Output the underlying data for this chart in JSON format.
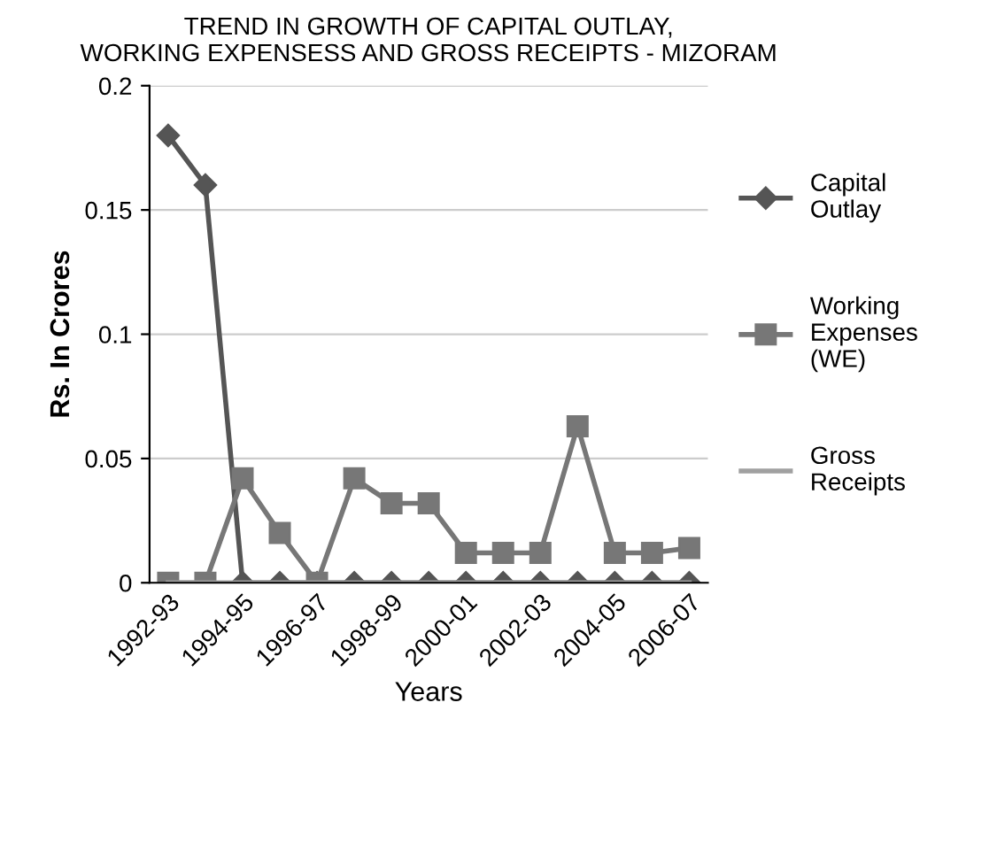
{
  "chart_data": {
    "type": "line",
    "title": "TREND IN GROWTH OF CAPITAL OUTLAY,\nWORKING EXPENSESS AND GROSS RECEIPTS - MIZORAM",
    "xlabel": "Years",
    "ylabel": "Rs. In Crores",
    "categories": [
      "1992-93",
      null,
      "1994-95",
      null,
      "1996-97",
      null,
      "1998-99",
      null,
      "2000-01",
      null,
      "2002-03",
      null,
      "2004-05",
      null,
      "2006-07"
    ],
    "series": [
      {
        "name": "Capital Outlay",
        "color": "#555555",
        "marker": "diamond",
        "values": [
          0.18,
          0.16,
          0,
          0,
          0,
          0,
          0,
          0,
          0,
          0,
          0,
          0,
          0,
          0,
          0
        ]
      },
      {
        "name": "Working Expenses (WE)",
        "color": "#777777",
        "marker": "square",
        "values": [
          0,
          0,
          0.042,
          0.02,
          0,
          0.042,
          0.032,
          0.032,
          0.012,
          0.012,
          0.012,
          0.063,
          0.012,
          0.012,
          0.014
        ]
      },
      {
        "name": "Gross Receipts",
        "color": "#a0a0a0",
        "marker": "none",
        "values": [
          0,
          0,
          0,
          0,
          0,
          0,
          0,
          0,
          0,
          0,
          0,
          0,
          0,
          0,
          0
        ]
      }
    ],
    "ylim": [
      0,
      0.2
    ],
    "yticks": [
      0,
      0.05,
      0.1,
      0.15,
      0.2
    ],
    "grid": "y",
    "legend": "right"
  }
}
